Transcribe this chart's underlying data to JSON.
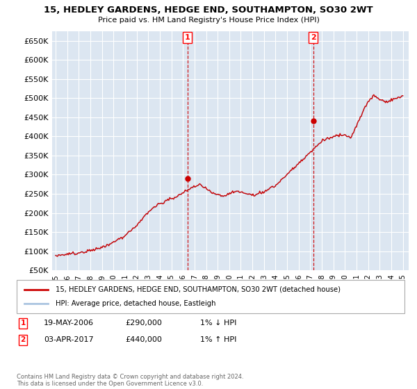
{
  "title": "15, HEDLEY GARDENS, HEDGE END, SOUTHAMPTON, SO30 2WT",
  "subtitle": "Price paid vs. HM Land Registry's House Price Index (HPI)",
  "ylim": [
    50000,
    675000
  ],
  "yticks": [
    50000,
    100000,
    150000,
    200000,
    250000,
    300000,
    350000,
    400000,
    450000,
    500000,
    550000,
    600000,
    650000
  ],
  "xlim_start": 1994.7,
  "xlim_end": 2025.5,
  "background_color": "#ffffff",
  "plot_bg_color": "#dce6f1",
  "grid_color": "#ffffff",
  "line_color_property": "#cc0000",
  "line_color_hpi": "#aac4e0",
  "transaction1_x": 2006.38,
  "transaction1_y": 290000,
  "transaction2_x": 2017.25,
  "transaction2_y": 440000,
  "legend_property": "15, HEDLEY GARDENS, HEDGE END, SOUTHAMPTON, SO30 2WT (detached house)",
  "legend_hpi": "HPI: Average price, detached house, Eastleigh",
  "annotation1_date": "19-MAY-2006",
  "annotation1_price": "£290,000",
  "annotation1_hpi": "1% ↓ HPI",
  "annotation2_date": "03-APR-2017",
  "annotation2_price": "£440,000",
  "annotation2_hpi": "1% ↑ HPI",
  "footer": "Contains HM Land Registry data © Crown copyright and database right 2024.\nThis data is licensed under the Open Government Licence v3.0."
}
